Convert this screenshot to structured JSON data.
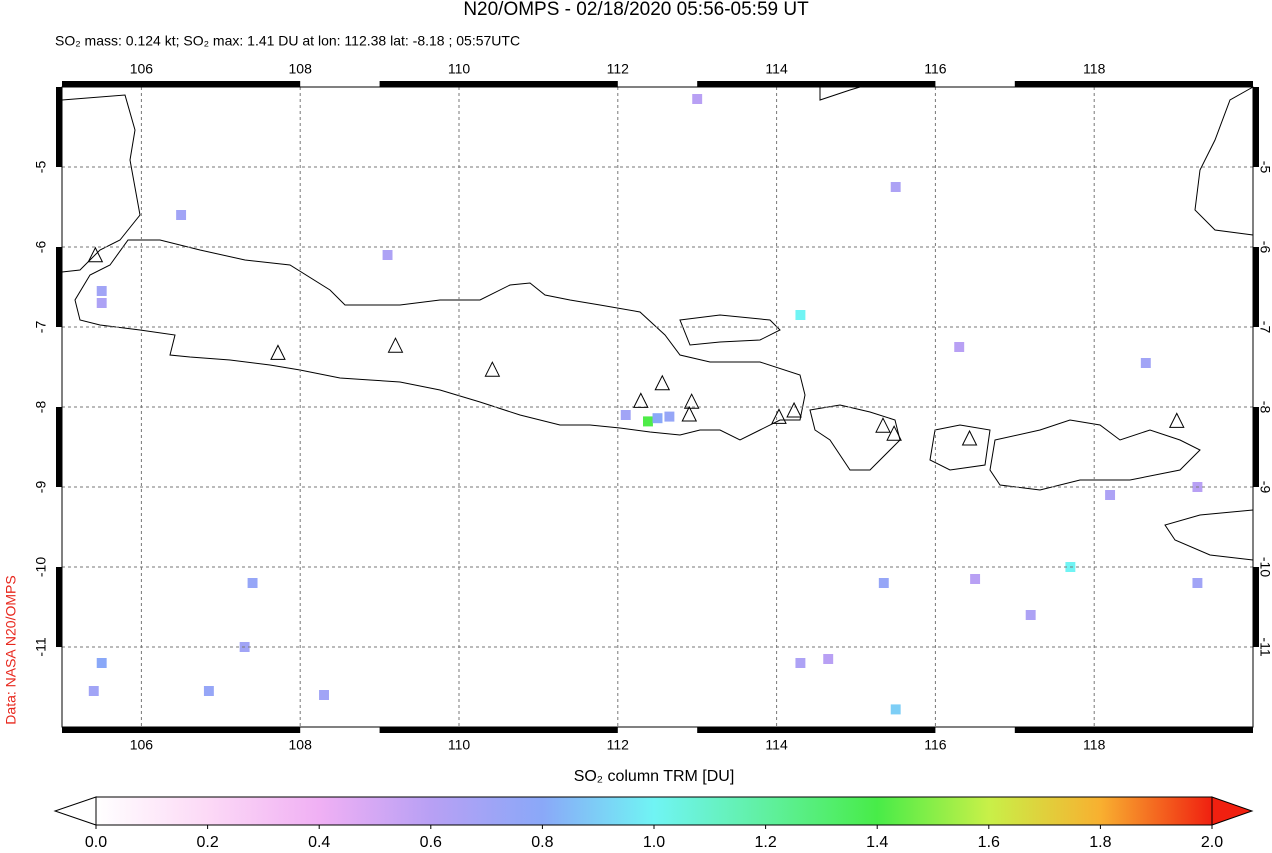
{
  "chart_data": {
    "type": "map",
    "title": "N20/OMPS - 02/18/2020 05:56-05:59 UT",
    "subtitle": "SO₂ mass: 0.124 kt; SO₂ max: 1.41 DU at lon: 112.38 lat: -8.18 ; 05:57UTC",
    "source": "Data: NASA N20/OMPS",
    "colorbar_label": "SO₂ column TRM [DU]",
    "xlim": [
      105,
      120
    ],
    "ylim": [
      -12,
      -4
    ],
    "xticks": [
      106,
      108,
      110,
      112,
      114,
      116,
      118
    ],
    "yticks": [
      -5,
      -6,
      -7,
      -8,
      -9,
      -10,
      -11
    ],
    "grid": true,
    "clim": [
      0,
      2
    ],
    "cticks": [
      {
        "value": 0,
        "label": "0.0"
      },
      0.2,
      0.4,
      0.6,
      0.8,
      {
        "value": 1,
        "label": "1.0"
      },
      1.2,
      1.4,
      1.6,
      1.8,
      {
        "value": 2,
        "label": "2.0"
      }
    ],
    "colormap": [
      "#ffffff",
      "#fcd9f6",
      "#f0b0f4",
      "#b8a0f4",
      "#8aa8f8",
      "#70f4f4",
      "#60f0a0",
      "#48ec48",
      "#c8f048",
      "#f8b030",
      "#f02010"
    ],
    "pixels": {
      "x": [
        112.38,
        112.5,
        112.65,
        112.1,
        114.3,
        117.7,
        115.35,
        115.5,
        106.85,
        105.5,
        105.4,
        107.4,
        107.3,
        108.3,
        105.5,
        105.5,
        106.5,
        109.1,
        113.0,
        115.5,
        118.65,
        119.3,
        118.2,
        119.3,
        114.3,
        114.65,
        116.5,
        117.2,
        116.3
      ],
      "y": [
        -8.18,
        -8.14,
        -8.12,
        -8.1,
        -6.85,
        -10.0,
        -10.2,
        -11.78,
        -11.55,
        -11.2,
        -11.55,
        -10.2,
        -11.0,
        -11.6,
        -6.55,
        -6.7,
        -5.6,
        -6.1,
        -4.15,
        -5.25,
        -7.45,
        -9.0,
        -9.1,
        -10.2,
        -11.2,
        -11.15,
        -10.15,
        -10.6,
        -7.25
      ],
      "values": [
        1.41,
        0.8,
        0.75,
        0.7,
        1.0,
        1.0,
        0.75,
        0.9,
        0.75,
        0.8,
        0.7,
        0.75,
        0.7,
        0.7,
        0.7,
        0.65,
        0.7,
        0.65,
        0.6,
        0.65,
        0.7,
        0.6,
        0.65,
        0.7,
        0.65,
        0.6,
        0.6,
        0.65,
        0.6
      ]
    },
    "volcanoes": {
      "x": [
        105.42,
        107.72,
        109.2,
        110.42,
        112.29,
        112.56,
        112.93,
        112.9,
        114.03,
        114.22,
        115.34,
        115.48,
        116.43,
        119.04
      ],
      "y": [
        -6.11,
        -7.33,
        -7.24,
        -7.54,
        -7.93,
        -7.71,
        -7.94,
        -8.1,
        -8.13,
        -8.05,
        -8.24,
        -8.34,
        -8.4,
        -8.18
      ]
    }
  }
}
